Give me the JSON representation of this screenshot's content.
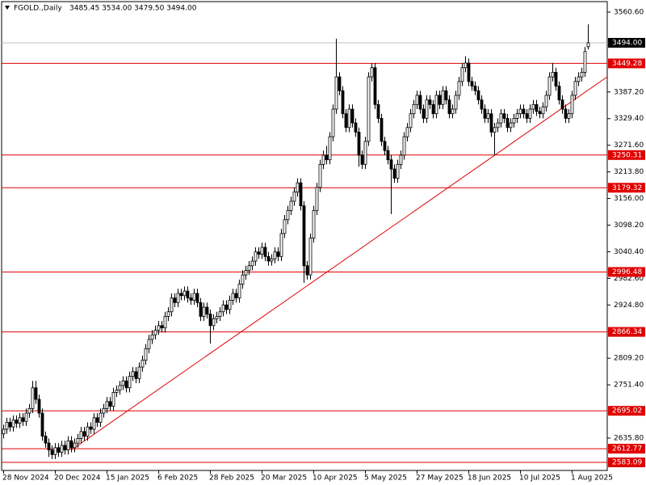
{
  "chart_data": {
    "type": "candlestick",
    "title": "FGOLD.,Daily",
    "header_values": "3485.45 3534.00 3479.50 3494.00",
    "ylim": [
      2565.54,
      3583.41
    ],
    "yticks": [
      {
        "value": 3560.6,
        "label": "3560.60"
      },
      {
        "value": 3387.2,
        "label": "3387.20"
      },
      {
        "value": 3329.4,
        "label": "3329.40"
      },
      {
        "value": 3271.6,
        "label": "3271.60"
      },
      {
        "value": 3213.8,
        "label": "3213.80"
      },
      {
        "value": 3156,
        "label": "3156.00"
      },
      {
        "value": 3098.2,
        "label": "3098.20"
      },
      {
        "value": 3040.4,
        "label": "3040.40"
      },
      {
        "value": 2982.6,
        "label": "2982.60"
      },
      {
        "value": 2924.8,
        "label": "2924.80"
      },
      {
        "value": 2809.2,
        "label": "2809.20"
      },
      {
        "value": 2751.4,
        "label": "2751.40"
      },
      {
        "value": 2635.8,
        "label": "2635.80"
      }
    ],
    "levels": [
      3449.28,
      3250.31,
      3179.32,
      2996.48,
      2866.34,
      2695.02,
      2612.77,
      2583.09
    ],
    "level_color": "#e00000",
    "current_price": {
      "value": 3494,
      "label": "3494.00"
    },
    "categories": [
      "28 Nov 2024",
      null,
      null,
      null,
      null,
      null,
      null,
      null,
      null,
      null,
      null,
      null,
      null,
      null,
      null,
      null,
      "20 Dec 2024",
      null,
      null,
      null,
      null,
      null,
      null,
      null,
      null,
      null,
      null,
      null,
      null,
      null,
      null,
      null,
      "15 Jan 2025",
      null,
      null,
      null,
      null,
      null,
      null,
      null,
      null,
      null,
      null,
      null,
      null,
      null,
      null,
      null,
      "6 Feb 2025",
      null,
      null,
      null,
      null,
      null,
      null,
      null,
      null,
      null,
      null,
      null,
      null,
      null,
      null,
      null,
      "28 Feb 2025",
      null,
      null,
      null,
      null,
      null,
      null,
      null,
      null,
      null,
      null,
      null,
      null,
      null,
      null,
      null,
      "20 Mar 2025",
      null,
      null,
      null,
      null,
      null,
      null,
      null,
      null,
      null,
      null,
      null,
      null,
      null,
      null,
      null,
      "10 Apr 2025",
      null,
      null,
      null,
      null,
      null,
      null,
      null,
      null,
      null,
      null,
      null,
      null,
      null,
      null,
      null,
      "5 May 2025",
      null,
      null,
      null,
      null,
      null,
      null,
      null,
      null,
      null,
      null,
      null,
      null,
      null,
      null,
      null,
      "27 May 2025",
      null,
      null,
      null,
      null,
      null,
      null,
      null,
      null,
      null,
      null,
      null,
      null,
      null,
      null,
      null,
      "18 Jun 2025",
      null,
      null,
      null,
      null,
      null,
      null,
      null,
      null,
      null,
      null,
      null,
      null,
      null,
      null,
      null,
      "10 Jul 2025",
      null,
      null,
      null,
      null,
      null,
      null,
      null,
      null,
      null,
      null,
      null,
      null,
      null,
      null,
      null,
      "1 Aug 2025",
      null,
      null,
      null,
      null,
      null
    ],
    "ohlc": [
      [
        2645,
        2665,
        2635,
        2655
      ],
      [
        2655,
        2680,
        2645,
        2670
      ],
      [
        2670,
        2680,
        2650,
        2660
      ],
      [
        2660,
        2685,
        2650,
        2675
      ],
      [
        2675,
        2685,
        2658,
        2668
      ],
      [
        2668,
        2690,
        2658,
        2680
      ],
      [
        2680,
        2690,
        2662,
        2672
      ],
      [
        2672,
        2700,
        2662,
        2690
      ],
      [
        2690,
        2710,
        2680,
        2700
      ],
      [
        2700,
        2760,
        2690,
        2745
      ],
      [
        2745,
        2760,
        2710,
        2720
      ],
      [
        2720,
        2730,
        2680,
        2690
      ],
      [
        2690,
        2700,
        2630,
        2640
      ],
      [
        2640,
        2650,
        2615,
        2625
      ],
      [
        2625,
        2635,
        2595,
        2610
      ],
      [
        2610,
        2620,
        2590,
        2600
      ],
      [
        2600,
        2625,
        2590,
        2615
      ],
      [
        2615,
        2625,
        2595,
        2605
      ],
      [
        2605,
        2630,
        2595,
        2620
      ],
      [
        2620,
        2630,
        2600,
        2610
      ],
      [
        2610,
        2640,
        2600,
        2630
      ],
      [
        2630,
        2640,
        2605,
        2615
      ],
      [
        2615,
        2635,
        2605,
        2625
      ],
      [
        2625,
        2645,
        2615,
        2635
      ],
      [
        2635,
        2660,
        2625,
        2650
      ],
      [
        2650,
        2660,
        2630,
        2640
      ],
      [
        2640,
        2670,
        2630,
        2660
      ],
      [
        2660,
        2670,
        2645,
        2655
      ],
      [
        2655,
        2690,
        2645,
        2680
      ],
      [
        2680,
        2690,
        2660,
        2670
      ],
      [
        2670,
        2700,
        2660,
        2690
      ],
      [
        2690,
        2710,
        2680,
        2700
      ],
      [
        2700,
        2725,
        2690,
        2715
      ],
      [
        2715,
        2725,
        2695,
        2705
      ],
      [
        2705,
        2745,
        2695,
        2735
      ],
      [
        2735,
        2750,
        2725,
        2740
      ],
      [
        2740,
        2760,
        2730,
        2750
      ],
      [
        2750,
        2770,
        2740,
        2760
      ],
      [
        2760,
        2770,
        2735,
        2745
      ],
      [
        2745,
        2780,
        2735,
        2770
      ],
      [
        2770,
        2790,
        2760,
        2780
      ],
      [
        2780,
        2790,
        2755,
        2765
      ],
      [
        2765,
        2800,
        2755,
        2790
      ],
      [
        2790,
        2815,
        2780,
        2805
      ],
      [
        2805,
        2840,
        2795,
        2830
      ],
      [
        2830,
        2860,
        2820,
        2850
      ],
      [
        2850,
        2870,
        2840,
        2860
      ],
      [
        2860,
        2880,
        2850,
        2870
      ],
      [
        2870,
        2890,
        2860,
        2880
      ],
      [
        2880,
        2890,
        2865,
        2875
      ],
      [
        2875,
        2910,
        2865,
        2900
      ],
      [
        2900,
        2920,
        2890,
        2910
      ],
      [
        2910,
        2950,
        2900,
        2940
      ],
      [
        2940,
        2950,
        2920,
        2930
      ],
      [
        2930,
        2960,
        2920,
        2950
      ],
      [
        2950,
        2960,
        2935,
        2945
      ],
      [
        2945,
        2965,
        2935,
        2955
      ],
      [
        2955,
        2965,
        2930,
        2940
      ],
      [
        2940,
        2950,
        2925,
        2935
      ],
      [
        2935,
        2960,
        2925,
        2950
      ],
      [
        2950,
        2960,
        2920,
        2930
      ],
      [
        2930,
        2940,
        2890,
        2900
      ],
      [
        2900,
        2930,
        2890,
        2920
      ],
      [
        2920,
        2930,
        2895,
        2905
      ],
      [
        2905,
        2915,
        2841,
        2880
      ],
      [
        2880,
        2905,
        2870,
        2895
      ],
      [
        2895,
        2910,
        2885,
        2900
      ],
      [
        2900,
        2920,
        2890,
        2910
      ],
      [
        2910,
        2935,
        2900,
        2925
      ],
      [
        2925,
        2935,
        2905,
        2915
      ],
      [
        2915,
        2945,
        2905,
        2935
      ],
      [
        2935,
        2960,
        2925,
        2950
      ],
      [
        2950,
        2960,
        2930,
        2940
      ],
      [
        2940,
        2980,
        2930,
        2970
      ],
      [
        2970,
        3000,
        2960,
        2990
      ],
      [
        2990,
        3010,
        2980,
        3000
      ],
      [
        3000,
        3020,
        2990,
        3010
      ],
      [
        3010,
        3030,
        3000,
        3020
      ],
      [
        3020,
        3050,
        3010,
        3040
      ],
      [
        3040,
        3050,
        3025,
        3035
      ],
      [
        3035,
        3060,
        3025,
        3050
      ],
      [
        3050,
        3060,
        3020,
        3030
      ],
      [
        3030,
        3040,
        3010,
        3020
      ],
      [
        3020,
        3035,
        3010,
        3025
      ],
      [
        3025,
        3050,
        3015,
        3040
      ],
      [
        3040,
        3050,
        3020,
        3030
      ],
      [
        3030,
        3090,
        3020,
        3080
      ],
      [
        3080,
        3120,
        3070,
        3110
      ],
      [
        3110,
        3140,
        3100,
        3130
      ],
      [
        3130,
        3160,
        3120,
        3150
      ],
      [
        3150,
        3180,
        3140,
        3170
      ],
      [
        3170,
        3200,
        3160,
        3190
      ],
      [
        3190,
        3200,
        3130,
        3140
      ],
      [
        3140,
        3150,
        2973,
        3010
      ],
      [
        3010,
        3020,
        2980,
        2990
      ],
      [
        2990,
        3080,
        2980,
        3070
      ],
      [
        3070,
        3140,
        3060,
        3130
      ],
      [
        3130,
        3190,
        3120,
        3180
      ],
      [
        3180,
        3240,
        3170,
        3230
      ],
      [
        3230,
        3260,
        3220,
        3250
      ],
      [
        3250,
        3270,
        3230,
        3240
      ],
      [
        3240,
        3300,
        3230,
        3290
      ],
      [
        3290,
        3360,
        3280,
        3350
      ],
      [
        3350,
        3503,
        3340,
        3420
      ],
      [
        3420,
        3430,
        3380,
        3390
      ],
      [
        3390,
        3400,
        3330,
        3340
      ],
      [
        3340,
        3350,
        3300,
        3310
      ],
      [
        3310,
        3360,
        3300,
        3350
      ],
      [
        3350,
        3360,
        3310,
        3320
      ],
      [
        3320,
        3330,
        3290,
        3300
      ],
      [
        3300,
        3310,
        3225,
        3250
      ],
      [
        3250,
        3260,
        3220,
        3230
      ],
      [
        3230,
        3290,
        3220,
        3280
      ],
      [
        3280,
        3430,
        3270,
        3420
      ],
      [
        3420,
        3450,
        3410,
        3440
      ],
      [
        3440,
        3450,
        3350,
        3360
      ],
      [
        3360,
        3370,
        3320,
        3330
      ],
      [
        3330,
        3340,
        3270,
        3280
      ],
      [
        3280,
        3290,
        3250,
        3260
      ],
      [
        3260,
        3270,
        3230,
        3240
      ],
      [
        3240,
        3250,
        3122,
        3220
      ],
      [
        3220,
        3230,
        3190,
        3200
      ],
      [
        3200,
        3240,
        3190,
        3230
      ],
      [
        3230,
        3260,
        3220,
        3250
      ],
      [
        3250,
        3300,
        3240,
        3290
      ],
      [
        3290,
        3320,
        3280,
        3310
      ],
      [
        3310,
        3350,
        3300,
        3340
      ],
      [
        3340,
        3370,
        3330,
        3360
      ],
      [
        3360,
        3390,
        3350,
        3380
      ],
      [
        3380,
        3390,
        3340,
        3350
      ],
      [
        3350,
        3360,
        3320,
        3330
      ],
      [
        3330,
        3380,
        3320,
        3370
      ],
      [
        3370,
        3380,
        3350,
        3360
      ],
      [
        3360,
        3370,
        3330,
        3340
      ],
      [
        3340,
        3390,
        3330,
        3380
      ],
      [
        3380,
        3390,
        3350,
        3360
      ],
      [
        3360,
        3400,
        3350,
        3390
      ],
      [
        3390,
        3400,
        3360,
        3370
      ],
      [
        3370,
        3380,
        3330,
        3340
      ],
      [
        3340,
        3360,
        3330,
        3350
      ],
      [
        3350,
        3390,
        3340,
        3380
      ],
      [
        3380,
        3420,
        3370,
        3410
      ],
      [
        3410,
        3450,
        3400,
        3440
      ],
      [
        3440,
        3465,
        3430,
        3450
      ],
      [
        3450,
        3460,
        3400,
        3410
      ],
      [
        3410,
        3420,
        3390,
        3400
      ],
      [
        3400,
        3410,
        3380,
        3390
      ],
      [
        3390,
        3400,
        3360,
        3370
      ],
      [
        3370,
        3380,
        3340,
        3350
      ],
      [
        3350,
        3360,
        3320,
        3330
      ],
      [
        3330,
        3350,
        3320,
        3340
      ],
      [
        3340,
        3350,
        3290,
        3300
      ],
      [
        3300,
        3320,
        3250,
        3310
      ],
      [
        3310,
        3330,
        3300,
        3320
      ],
      [
        3320,
        3350,
        3310,
        3340
      ],
      [
        3340,
        3350,
        3320,
        3330
      ],
      [
        3330,
        3340,
        3300,
        3310
      ],
      [
        3310,
        3330,
        3300,
        3320
      ],
      [
        3320,
        3340,
        3310,
        3330
      ],
      [
        3330,
        3350,
        3320,
        3340
      ],
      [
        3340,
        3360,
        3330,
        3350
      ],
      [
        3350,
        3360,
        3330,
        3340
      ],
      [
        3340,
        3350,
        3320,
        3330
      ],
      [
        3330,
        3360,
        3320,
        3350
      ],
      [
        3350,
        3370,
        3340,
        3360
      ],
      [
        3360,
        3370,
        3335,
        3345
      ],
      [
        3345,
        3355,
        3330,
        3340
      ],
      [
        3340,
        3365,
        3330,
        3355
      ],
      [
        3355,
        3390,
        3345,
        3380
      ],
      [
        3380,
        3430,
        3370,
        3420
      ],
      [
        3420,
        3450,
        3410,
        3430
      ],
      [
        3430,
        3440,
        3390,
        3400
      ],
      [
        3400,
        3410,
        3360,
        3370
      ],
      [
        3370,
        3380,
        3340,
        3350
      ],
      [
        3350,
        3360,
        3320,
        3330
      ],
      [
        3330,
        3350,
        3320,
        3340
      ],
      [
        3340,
        3390,
        3330,
        3380
      ],
      [
        3380,
        3420,
        3370,
        3410
      ],
      [
        3410,
        3430,
        3400,
        3420
      ],
      [
        3420,
        3440,
        3410,
        3430
      ],
      [
        3430,
        3485,
        3420,
        3475
      ],
      [
        3485.45,
        3534,
        3479.5,
        3494
      ]
    ]
  }
}
